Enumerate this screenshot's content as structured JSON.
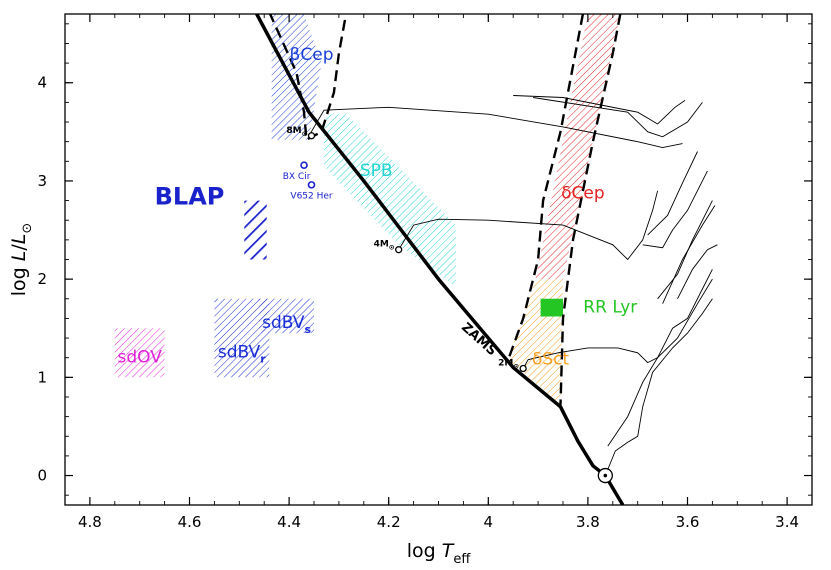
{
  "chart_data": {
    "type": "scatter",
    "title": "",
    "xlabel": {
      "main": "log ",
      "var": "T",
      "sub": "eff"
    },
    "ylabel": {
      "main": "log ",
      "var": "L",
      "slash": "/",
      "var2": "L",
      "sub": "⊙"
    },
    "xlim": [
      4.85,
      3.35
    ],
    "ylim": [
      -0.3,
      4.7
    ],
    "x_ticks": [
      "4.8",
      "4.6",
      "4.4",
      "4.2",
      "4",
      "3.8",
      "3.6",
      "3.4"
    ],
    "x_tick_values": [
      4.8,
      4.6,
      4.4,
      4.2,
      4.0,
      3.8,
      3.6,
      3.4
    ],
    "y_ticks": [
      "0",
      "1",
      "2",
      "3",
      "4"
    ],
    "y_tick_values": [
      0,
      1,
      2,
      3,
      4
    ],
    "zams": {
      "label": "ZAMS",
      "points": [
        [
          4.465,
          4.7
        ],
        [
          4.36,
          3.7
        ],
        [
          4.25,
          3.0
        ],
        [
          4.1,
          2.0
        ],
        [
          3.95,
          1.1
        ],
        [
          3.855,
          0.7
        ],
        [
          3.82,
          0.35
        ],
        [
          3.79,
          0.1
        ],
        [
          3.765,
          0.0
        ],
        [
          3.73,
          -0.3
        ]
      ]
    },
    "masses": [
      {
        "label": "8M",
        "sun": "⊙",
        "x": 4.355,
        "y": 3.46
      },
      {
        "label": "4M",
        "sun": "⊙",
        "x": 4.18,
        "y": 2.3
      },
      {
        "label": "2M",
        "sun": "⊙",
        "x": 3.93,
        "y": 1.09
      }
    ],
    "sun_symbol": {
      "x": 3.765,
      "y": 0.0
    },
    "regions": [
      {
        "name": "βCep",
        "label": "βCep",
        "color": "#1a3fd9",
        "polygon": [
          [
            4.435,
            4.7
          ],
          [
            4.37,
            4.7
          ],
          [
            4.335,
            4.2
          ],
          [
            4.36,
            3.42
          ],
          [
            4.435,
            3.42
          ]
        ],
        "hatch": "dense",
        "label_x": 4.355,
        "label_y": 4.23
      },
      {
        "name": "SPB",
        "label": "SPB",
        "color": "#22d3d3",
        "polygon": [
          [
            4.33,
            3.68
          ],
          [
            4.285,
            3.68
          ],
          [
            4.065,
            2.55
          ],
          [
            4.065,
            1.92
          ],
          [
            4.18,
            2.35
          ],
          [
            4.33,
            3.15
          ]
        ],
        "hatch": "dense",
        "label_x": 4.225,
        "label_y": 3.05
      },
      {
        "name": "δCep",
        "label": "δCep",
        "color": "#e52222",
        "polygon": [
          [
            3.8,
            4.7
          ],
          [
            3.735,
            4.7
          ],
          [
            3.85,
            2.0
          ],
          [
            3.905,
            2.0
          ]
        ],
        "hatch": "dense",
        "label_x": 3.81,
        "label_y": 2.82
      },
      {
        "name": "δSct",
        "label": "δSct",
        "color": "#f5a020",
        "polygon": [
          [
            3.905,
            2.0
          ],
          [
            3.85,
            2.0
          ],
          [
            3.855,
            0.72
          ],
          [
            3.96,
            1.18
          ]
        ],
        "hatch": "dense",
        "label_x": 3.875,
        "label_y": 1.13
      },
      {
        "name": "RR Lyr",
        "label": "RR Lyr",
        "color": "#23c623",
        "polygon": [
          [
            3.895,
            1.8
          ],
          [
            3.85,
            1.8
          ],
          [
            3.85,
            1.62
          ],
          [
            3.895,
            1.62
          ]
        ],
        "hatch": "solid",
        "label_x": 3.755,
        "label_y": 1.66
      },
      {
        "name": "BLAP",
        "label": "BLAP",
        "color": "#1a22cc",
        "polygon": [
          [
            4.49,
            2.8
          ],
          [
            4.445,
            2.8
          ],
          [
            4.445,
            2.2
          ],
          [
            4.49,
            2.2
          ]
        ],
        "hatch": "thick",
        "label_x": 4.6,
        "label_y": 2.76
      },
      {
        "name": "sdBVr",
        "label": "sdBV",
        "sub": "r",
        "color": "#1a2ed6",
        "polygon": [
          [
            4.55,
            1.8
          ],
          [
            4.44,
            1.8
          ],
          [
            4.44,
            1.0
          ],
          [
            4.55,
            1.0
          ]
        ],
        "hatch": "dense",
        "label_x": 4.495,
        "label_y": 1.2
      },
      {
        "name": "sdBVs",
        "label": "sdBV",
        "sub": "s",
        "color": "#1a2ed6",
        "polygon": [
          [
            4.46,
            1.8
          ],
          [
            4.35,
            1.8
          ],
          [
            4.35,
            1.45
          ],
          [
            4.46,
            1.45
          ]
        ],
        "hatch": "dense",
        "label_x": 4.405,
        "label_y": 1.5
      },
      {
        "name": "sdOV",
        "label": "sdOV",
        "color": "#e020d8",
        "polygon": [
          [
            4.75,
            1.5
          ],
          [
            4.65,
            1.5
          ],
          [
            4.65,
            1.0
          ],
          [
            4.75,
            1.0
          ]
        ],
        "hatch": "dense",
        "label_x": 4.7,
        "label_y": 1.15
      }
    ],
    "stars": [
      {
        "name": "BX Cir",
        "x": 4.37,
        "y": 3.16,
        "label_x": 4.385,
        "label_y": 3.02
      },
      {
        "name": "V652 Her",
        "x": 4.355,
        "y": 2.96,
        "label_x": 4.355,
        "label_y": 2.82
      }
    ],
    "tracks": [
      [
        [
          4.36,
          3.46
        ],
        [
          4.33,
          3.72
        ],
        [
          4.2,
          3.75
        ],
        [
          4.0,
          3.68
        ],
        [
          3.85,
          3.55
        ],
        [
          3.7,
          3.4
        ],
        [
          3.65,
          3.34
        ],
        [
          3.61,
          3.38
        ]
      ],
      [
        [
          3.95,
          3.87
        ],
        [
          3.85,
          3.85
        ],
        [
          3.7,
          3.7
        ],
        [
          3.66,
          3.58
        ],
        [
          3.625,
          3.75
        ],
        [
          3.605,
          3.82
        ]
      ],
      [
        [
          3.91,
          3.85
        ],
        [
          3.72,
          3.7
        ],
        [
          3.68,
          3.5
        ],
        [
          3.65,
          3.45
        ],
        [
          3.6,
          3.6
        ],
        [
          3.57,
          3.8
        ]
      ],
      [
        [
          4.18,
          2.3
        ],
        [
          4.15,
          2.55
        ],
        [
          4.1,
          2.61
        ],
        [
          4.0,
          2.6
        ],
        [
          3.85,
          2.55
        ],
        [
          3.75,
          2.35
        ],
        [
          3.72,
          2.2
        ],
        [
          3.69,
          2.4
        ],
        [
          3.67,
          2.7
        ],
        [
          3.66,
          2.9
        ]
      ],
      [
        [
          3.68,
          2.45
        ],
        [
          3.64,
          2.65
        ],
        [
          3.61,
          2.98
        ],
        [
          3.58,
          3.3
        ]
      ],
      [
        [
          3.69,
          2.35
        ],
        [
          3.65,
          2.32
        ],
        [
          3.63,
          2.5
        ],
        [
          3.6,
          2.7
        ],
        [
          3.57,
          3.0
        ],
        [
          3.56,
          3.1
        ]
      ],
      [
        [
          3.66,
          1.8
        ],
        [
          3.62,
          2.05
        ],
        [
          3.59,
          2.4
        ],
        [
          3.56,
          2.7
        ],
        [
          3.55,
          2.8
        ]
      ],
      [
        [
          3.65,
          1.75
        ],
        [
          3.61,
          2.2
        ],
        [
          3.57,
          2.55
        ],
        [
          3.545,
          2.75
        ]
      ],
      [
        [
          3.62,
          1.8
        ],
        [
          3.59,
          2.1
        ],
        [
          3.56,
          2.3
        ],
        [
          3.54,
          2.35
        ]
      ],
      [
        [
          3.93,
          1.09
        ],
        [
          3.92,
          1.18
        ],
        [
          3.86,
          1.25
        ],
        [
          3.8,
          1.3
        ],
        [
          3.74,
          1.3
        ],
        [
          3.7,
          1.25
        ],
        [
          3.68,
          1.15
        ],
        [
          3.66,
          1.2
        ],
        [
          3.63,
          1.5
        ],
        [
          3.6,
          1.6
        ],
        [
          3.57,
          1.9
        ],
        [
          3.55,
          2.1
        ]
      ],
      [
        [
          3.765,
          0.0
        ],
        [
          3.745,
          0.25
        ],
        [
          3.72,
          0.34
        ],
        [
          3.7,
          0.4
        ],
        [
          3.69,
          0.7
        ],
        [
          3.67,
          1.05
        ],
        [
          3.63,
          1.3
        ],
        [
          3.6,
          1.45
        ],
        [
          3.57,
          1.65
        ],
        [
          3.55,
          1.8
        ]
      ],
      [
        [
          3.76,
          0.3
        ],
        [
          3.72,
          0.6
        ],
        [
          3.69,
          0.95
        ],
        [
          3.66,
          1.2
        ],
        [
          3.62,
          1.4
        ],
        [
          3.58,
          1.75
        ],
        [
          3.55,
          2.0
        ]
      ]
    ],
    "instability_strip": {
      "blue_edge": [
        [
          3.81,
          4.7
        ],
        [
          3.855,
          3.5
        ],
        [
          3.89,
          2.8
        ],
        [
          3.9,
          2.2
        ],
        [
          3.93,
          1.6
        ],
        [
          3.96,
          1.18
        ]
      ],
      "red_edge": [
        [
          3.735,
          4.7
        ],
        [
          3.75,
          4.3
        ],
        [
          3.79,
          3.4
        ],
        [
          3.83,
          2.4
        ],
        [
          3.85,
          1.6
        ],
        [
          3.855,
          0.72
        ]
      ]
    },
    "beta_cep_edge": [
      [
        4.44,
        4.72
      ],
      [
        4.385,
        4.1
      ],
      [
        4.37,
        3.7
      ],
      [
        4.365,
        3.42
      ],
      [
        4.335,
        3.5
      ],
      [
        4.31,
        3.9
      ],
      [
        4.3,
        4.3
      ],
      [
        4.285,
        4.72
      ]
    ]
  }
}
